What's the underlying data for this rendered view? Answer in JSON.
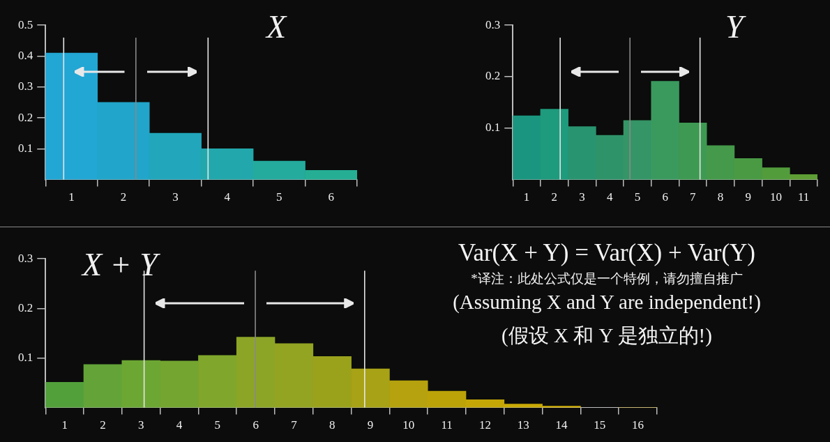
{
  "chart_data": [
    {
      "type": "histogram",
      "title": "X",
      "bins": [
        0.5,
        1.5,
        2.5,
        3.5,
        4.5,
        5.5,
        6.5
      ],
      "values": [
        0.41,
        0.25,
        0.15,
        0.1,
        0.06,
        0.03
      ],
      "colors": [
        "#22a6d4",
        "#21a5ca",
        "#21a6bb",
        "#22a8ac",
        "#24ab9e",
        "#25ae94"
      ],
      "xlim": [
        0.5,
        6.5
      ],
      "xticks": [
        {
          "value": 0.5,
          "label": null
        },
        1,
        {
          "value": 1.5,
          "label": null
        },
        2,
        {
          "value": 2.5,
          "label": null
        },
        3,
        {
          "value": 3.5,
          "label": null
        },
        4,
        {
          "value": 4.5,
          "label": null
        },
        5,
        {
          "value": 5.5,
          "label": null
        },
        6,
        {
          "value": 6.5,
          "label": null
        }
      ],
      "ylim": [
        0,
        0.5
      ],
      "yticks": [
        0.1,
        0.2,
        0.3,
        0.4,
        0.5
      ],
      "ref_lines": [
        {
          "axis": "x",
          "value": 0.85,
          "color": "#e6e6e6"
        },
        {
          "axis": "x",
          "value": 2.24,
          "color": "#8a8a8a"
        },
        {
          "axis": "x",
          "value": 3.63,
          "color": "#e6e6e6"
        }
      ]
    },
    {
      "type": "histogram",
      "title": "Y",
      "bins": [
        0.5,
        1.5,
        2.5,
        3.5,
        4.5,
        5.5,
        6.5,
        7.5,
        8.5,
        9.5,
        10.5,
        11.5
      ],
      "values": [
        0.124,
        0.137,
        0.103,
        0.086,
        0.115,
        0.191,
        0.11,
        0.066,
        0.041,
        0.023,
        0.01
      ],
      "colors": [
        "#1a9680",
        "#1e9a7c",
        "#299470",
        "#2f936a",
        "#359566",
        "#3a9a5e",
        "#3e9a52",
        "#44994a",
        "#4a9a44",
        "#529c3c",
        "#5e9e34"
      ],
      "xlim": [
        0.5,
        11.5
      ],
      "xticks": [
        {
          "value": 0.5,
          "label": null
        },
        1,
        {
          "value": 1.5,
          "label": null
        },
        2,
        {
          "value": 2.5,
          "label": null
        },
        3,
        {
          "value": 3.5,
          "label": null
        },
        4,
        {
          "value": 4.5,
          "label": null
        },
        5,
        {
          "value": 5.5,
          "label": null
        },
        6,
        {
          "value": 6.5,
          "label": null
        },
        7,
        {
          "value": 7.5,
          "label": null
        },
        8,
        {
          "value": 8.5,
          "label": null
        },
        9,
        {
          "value": 9.5,
          "label": null
        },
        10,
        {
          "value": 10.5,
          "label": null
        },
        11,
        {
          "value": 11.5,
          "label": null
        }
      ],
      "ylim": [
        0,
        0.3
      ],
      "yticks": [
        0.1,
        0.2,
        0.3
      ],
      "ref_lines": [
        {
          "axis": "x",
          "value": 2.21,
          "color": "#e6e6e6"
        },
        {
          "axis": "x",
          "value": 4.73,
          "color": "#8a8a8a"
        },
        {
          "axis": "x",
          "value": 7.26,
          "color": "#e6e6e6"
        }
      ]
    },
    {
      "type": "histogram",
      "title": "X + Y",
      "bins": [
        0.5,
        1.5,
        2.5,
        3.5,
        4.5,
        5.5,
        6.5,
        7.5,
        8.5,
        9.5,
        10.5,
        11.5,
        12.5,
        13.5,
        14.5,
        15.5,
        16.5
      ],
      "values": [
        0.051,
        0.087,
        0.095,
        0.094,
        0.105,
        0.142,
        0.129,
        0.103,
        0.078,
        0.054,
        0.033,
        0.016,
        0.007,
        0.003,
        null,
        0
      ],
      "colors": [
        "#52a03a",
        "#63a337",
        "#6ca733",
        "#74a530",
        "#80a72b",
        "#8ca526",
        "#93a322",
        "#9aa21c",
        "#a8a216",
        "#b5a20e",
        "#bca308",
        "#c4a606",
        "#c9a905",
        "#d0ac04",
        "#d6ae03",
        "#dcb002"
      ],
      "xlim": [
        0.5,
        16.5
      ],
      "xticks": [
        {
          "value": 0.5,
          "label": null
        },
        1,
        {
          "value": 1.5,
          "label": null
        },
        2,
        {
          "value": 2.5,
          "label": null
        },
        3,
        {
          "value": 3.5,
          "label": null
        },
        4,
        {
          "value": 4.5,
          "label": null
        },
        5,
        {
          "value": 5.5,
          "label": null
        },
        6,
        {
          "value": 6.5,
          "label": null
        },
        7,
        {
          "value": 7.5,
          "label": null
        },
        8,
        {
          "value": 8.5,
          "label": null
        },
        9,
        {
          "value": 9.5,
          "label": null
        },
        10,
        {
          "value": 10.5,
          "label": null
        },
        11,
        {
          "value": 11.5,
          "label": null
        },
        12,
        {
          "value": 12.5,
          "label": null
        },
        13,
        {
          "value": 13.5,
          "label": null
        },
        14,
        {
          "value": 14.5,
          "label": null
        },
        15,
        {
          "value": 15.5,
          "label": null
        },
        16,
        {
          "value": 16.5,
          "label": null
        }
      ],
      "ylim": [
        0,
        0.3
      ],
      "yticks": [
        0.1,
        0.2,
        0.3
      ],
      "ref_lines": [
        {
          "axis": "x",
          "value": 3.08,
          "color": "#e6e6e6"
        },
        {
          "axis": "x",
          "value": 5.99,
          "color": "#8a8a8a"
        },
        {
          "axis": "x",
          "value": 8.85,
          "color": "#e6e6e6"
        }
      ],
      "annotations": [
        "Var(X + Y) = Var(X) + Var(Y)",
        "*译注：此处公式仅是一个特例，请勿擅自推广",
        "(Assuming X and Y are independent!)",
        "(假设 X 和 Y 是独立的!)"
      ]
    }
  ]
}
